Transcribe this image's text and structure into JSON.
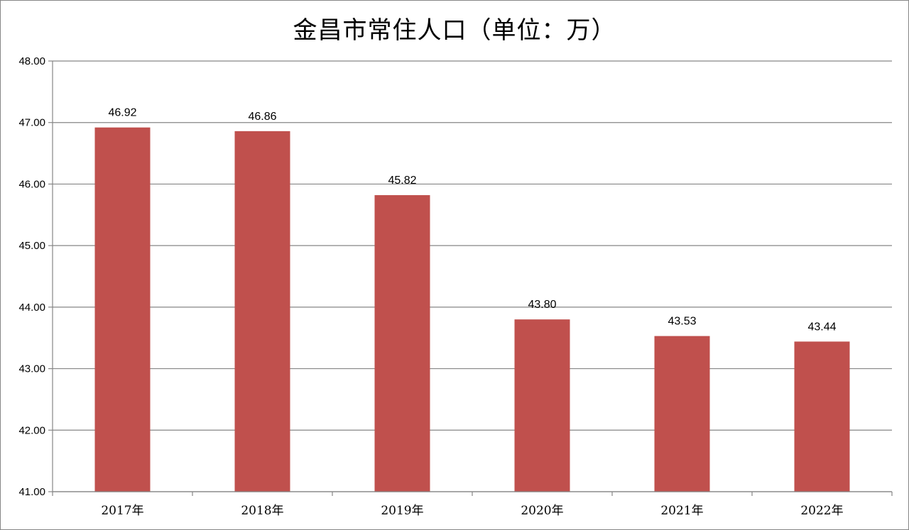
{
  "chart_data": {
    "type": "bar",
    "title": "金昌市常住人口（单位：万）",
    "categories": [
      "2017年",
      "2018年",
      "2019年",
      "2020年",
      "2021年",
      "2022年"
    ],
    "values": [
      46.92,
      46.86,
      45.82,
      43.8,
      43.53,
      43.44
    ],
    "data_labels": [
      "46.92",
      "46.86",
      "45.82",
      "43.80",
      "43.53",
      "43.44"
    ],
    "ylim": [
      41,
      48
    ],
    "yticks": [
      "41.00",
      "42.00",
      "43.00",
      "44.00",
      "45.00",
      "46.00",
      "47.00",
      "48.00"
    ],
    "grid": true,
    "legend": "none",
    "colors": {
      "bar": "#C0504D",
      "grid": "#868686",
      "axis": "#868686"
    }
  }
}
